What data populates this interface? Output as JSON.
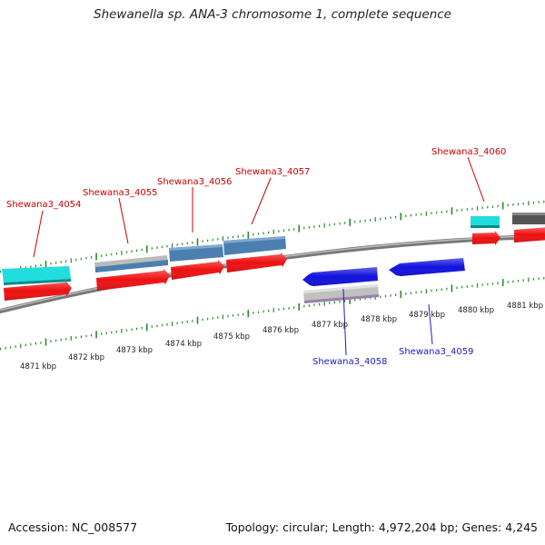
{
  "title": "Shewanella sp. ANA-3 chromosome 1, complete sequence",
  "accession": "Accession: NC_008577",
  "topology": "Topology: circular; Length: 4,972,204 bp; Genes: 4,245",
  "scale_labels": [
    "4871 kbp",
    "4872 kbp",
    "4873 kbp",
    "4874 kbp",
    "4875 kbp",
    "4876 kbp",
    "4877 kbp",
    "4878 kbp",
    "4879 kbp",
    "4880 kbp",
    "4881 kbp"
  ],
  "forward_genes": [
    "Shewana3_4054",
    "Shewana3_4055",
    "Shewana3_4056",
    "Shewana3_4057",
    "Shewana3_4060"
  ],
  "reverse_genes": [
    "Shewana3_4058",
    "Shewana3_4059"
  ],
  "colors": {
    "forward_label": "#cc0000",
    "reverse_label": "#1a1acc",
    "cds": "#ee1111",
    "cds_reverse": "#1111dd",
    "trna": "#22dddd",
    "gene_gray": "#bbbbbb",
    "gene_steel": "#4a7fb0",
    "gene_dark": "#555555",
    "backbone": "#888888",
    "tick": "#2a8a2a"
  }
}
